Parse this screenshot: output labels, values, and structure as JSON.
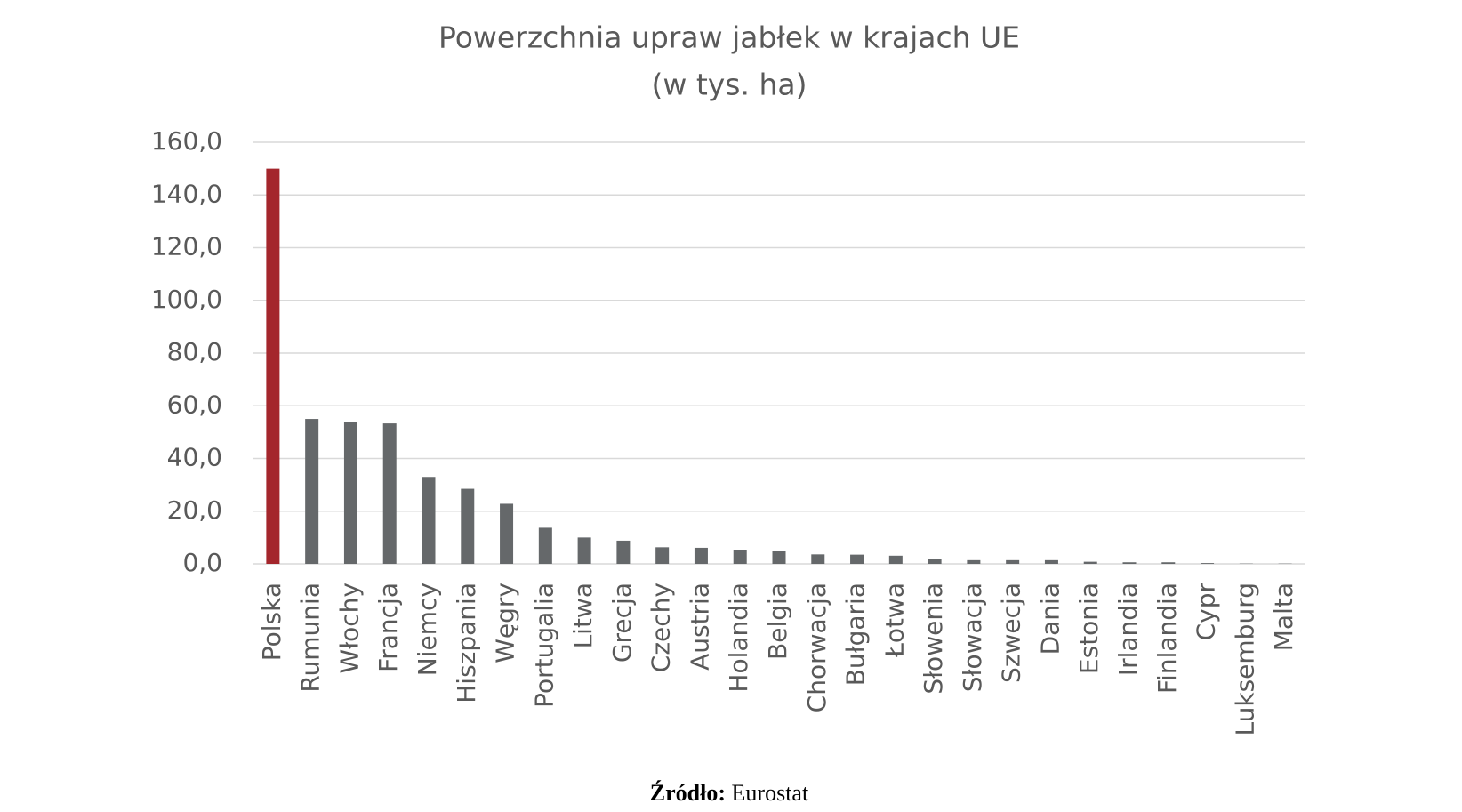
{
  "chart_data": {
    "type": "bar",
    "title": "Powerzchnia upraw jabłek w krajach UE",
    "subtitle": "(w tys. ha)",
    "categories": [
      "Polska",
      "Rumunia",
      "Włochy",
      "Francja",
      "Niemcy",
      "Hiszpania",
      "Węgry",
      "Portugalia",
      "Litwa",
      "Grecja",
      "Czechy",
      "Austria",
      "Holandia",
      "Belgia",
      "Chorwacja",
      "Bułgaria",
      "Łotwa",
      "Słowenia",
      "Słowacja",
      "Szwecja",
      "Dania",
      "Estonia",
      "Irlandia",
      "Finlandia",
      "Cypr",
      "Luksemburg",
      "Malta"
    ],
    "values": [
      150,
      55,
      54,
      53.3,
      33,
      28.5,
      22.8,
      13.7,
      10,
      8.8,
      6.3,
      6.1,
      5.4,
      4.8,
      3.6,
      3.5,
      3.1,
      1.9,
      1.4,
      1.4,
      1.4,
      0.8,
      0.6,
      0.6,
      0.3,
      0.1,
      0.1
    ],
    "colors": [
      "#a4262c",
      "#65686a",
      "#65686a",
      "#65686a",
      "#65686a",
      "#65686a",
      "#65686a",
      "#65686a",
      "#65686a",
      "#65686a",
      "#65686a",
      "#65686a",
      "#65686a",
      "#65686a",
      "#65686a",
      "#65686a",
      "#65686a",
      "#65686a",
      "#65686a",
      "#65686a",
      "#65686a",
      "#65686a",
      "#65686a",
      "#65686a",
      "#65686a",
      "#65686a",
      "#65686a"
    ],
    "ylim": [
      0,
      160
    ],
    "yticks": [
      {
        "value": 0,
        "label": "0,0"
      },
      {
        "value": 20,
        "label": "20,0"
      },
      {
        "value": 40,
        "label": "40,0"
      },
      {
        "value": 60,
        "label": "60,0"
      },
      {
        "value": 80,
        "label": "80,0"
      },
      {
        "value": 100,
        "label": "100,0"
      },
      {
        "value": 120,
        "label": "120,0"
      },
      {
        "value": 140,
        "label": "140,0"
      },
      {
        "value": 160,
        "label": "160,0"
      }
    ],
    "grid": true,
    "source": {
      "label": "Źródło:",
      "text": "Eurostat"
    }
  }
}
